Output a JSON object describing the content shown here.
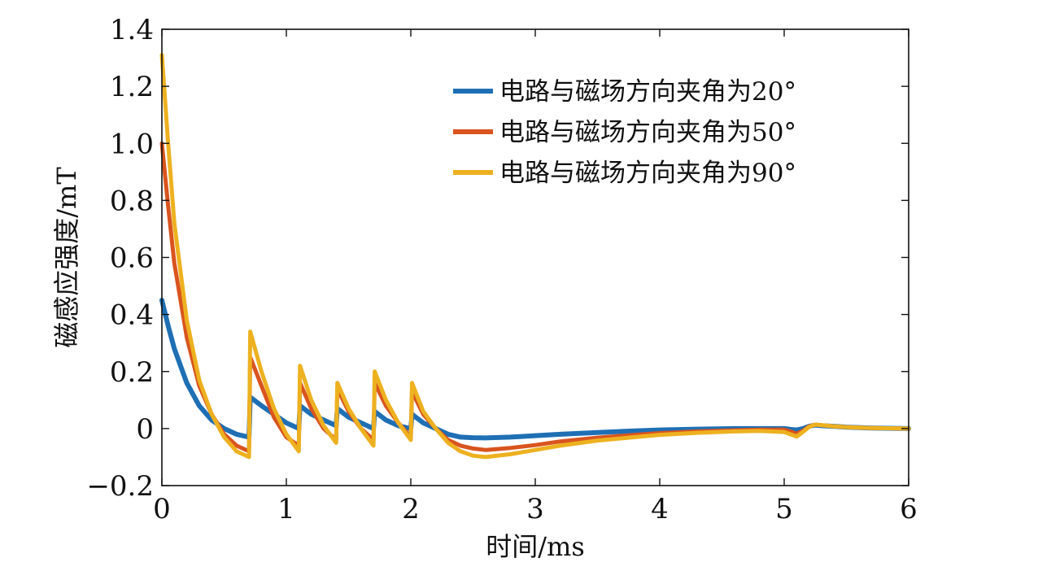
{
  "chart_data": {
    "type": "line",
    "title": "",
    "xlabel": "时间/ms",
    "ylabel": "磁感应强度/mT",
    "xlim": [
      0,
      6
    ],
    "ylim": [
      -0.2,
      1.4
    ],
    "xticks": [
      0,
      1,
      2,
      3,
      4,
      5,
      6
    ],
    "xtick_labels": [
      "0",
      "1",
      "2",
      "3",
      "4",
      "5",
      "6"
    ],
    "yticks": [
      -0.2,
      0,
      0.2,
      0.4,
      0.6,
      0.8,
      1.0,
      1.2,
      1.4
    ],
    "ytick_labels": [
      "−0.2",
      "0",
      "0.2",
      "0.4",
      "0.6",
      "0.8",
      "1.0",
      "1.2",
      "1.4"
    ],
    "grid": false,
    "legend_position": "top-right",
    "series": [
      {
        "name": "电路与磁场方向夹角为20°",
        "color": "#1f6fb4",
        "x": [
          0,
          0.05,
          0.1,
          0.2,
          0.3,
          0.4,
          0.5,
          0.6,
          0.7,
          0.71,
          0.8,
          0.9,
          1.0,
          1.1,
          1.11,
          1.2,
          1.3,
          1.4,
          1.41,
          1.5,
          1.6,
          1.7,
          1.71,
          1.8,
          1.9,
          2.0,
          2.01,
          2.1,
          2.2,
          2.3,
          2.4,
          2.5,
          2.6,
          2.8,
          3.0,
          3.2,
          3.5,
          3.8,
          4.0,
          4.3,
          4.6,
          4.8,
          5.0,
          5.05,
          5.1,
          5.15,
          5.2,
          5.25,
          5.3,
          5.4,
          5.5,
          5.7,
          6.0
        ],
        "y": [
          0.45,
          0.36,
          0.28,
          0.16,
          0.08,
          0.03,
          0.0,
          -0.02,
          -0.03,
          0.11,
          0.08,
          0.05,
          0.02,
          0.0,
          0.08,
          0.05,
          0.03,
          0.01,
          0.07,
          0.04,
          0.02,
          0.0,
          0.06,
          0.03,
          0.01,
          0.0,
          0.05,
          0.02,
          0.0,
          -0.02,
          -0.03,
          -0.032,
          -0.033,
          -0.03,
          -0.025,
          -0.02,
          -0.014,
          -0.008,
          -0.005,
          -0.002,
          0.0,
          0.0,
          0.0,
          -0.003,
          -0.005,
          0.0,
          0.008,
          0.012,
          0.01,
          0.008,
          0.005,
          0.002,
          0.0
        ]
      },
      {
        "name": "电路与磁场方向夹角为50°",
        "color": "#d9541e",
        "x": [
          0,
          0.05,
          0.1,
          0.2,
          0.3,
          0.4,
          0.5,
          0.6,
          0.7,
          0.71,
          0.8,
          0.9,
          1.0,
          1.1,
          1.11,
          1.2,
          1.3,
          1.4,
          1.41,
          1.5,
          1.6,
          1.7,
          1.71,
          1.8,
          1.9,
          2.0,
          2.01,
          2.1,
          2.2,
          2.3,
          2.4,
          2.5,
          2.6,
          2.8,
          3.0,
          3.2,
          3.5,
          3.8,
          4.0,
          4.3,
          4.6,
          4.8,
          5.0,
          5.05,
          5.1,
          5.15,
          5.2,
          5.25,
          5.3,
          5.4,
          5.5,
          5.7,
          6.0
        ],
        "y": [
          1.0,
          0.78,
          0.58,
          0.32,
          0.15,
          0.05,
          -0.02,
          -0.06,
          -0.08,
          0.25,
          0.15,
          0.04,
          -0.03,
          -0.06,
          0.16,
          0.07,
          0.0,
          -0.04,
          0.14,
          0.06,
          0.0,
          -0.04,
          0.16,
          0.08,
          0.02,
          -0.03,
          0.13,
          0.05,
          0.0,
          -0.04,
          -0.06,
          -0.07,
          -0.075,
          -0.068,
          -0.058,
          -0.045,
          -0.032,
          -0.022,
          -0.016,
          -0.01,
          -0.006,
          -0.004,
          -0.004,
          -0.01,
          -0.018,
          -0.008,
          0.008,
          0.014,
          0.012,
          0.008,
          0.005,
          0.002,
          0.0
        ]
      },
      {
        "name": "电路与磁场方向夹角为90°",
        "color": "#edb120",
        "x": [
          0,
          0.05,
          0.1,
          0.2,
          0.3,
          0.4,
          0.5,
          0.6,
          0.7,
          0.71,
          0.8,
          0.9,
          1.0,
          1.1,
          1.11,
          1.2,
          1.3,
          1.4,
          1.41,
          1.5,
          1.6,
          1.7,
          1.71,
          1.8,
          1.9,
          2.0,
          2.01,
          2.1,
          2.2,
          2.3,
          2.4,
          2.5,
          2.6,
          2.8,
          3.0,
          3.2,
          3.5,
          3.8,
          4.0,
          4.3,
          4.6,
          4.8,
          5.0,
          5.05,
          5.1,
          5.15,
          5.2,
          5.25,
          5.3,
          5.4,
          5.5,
          5.7,
          6.0
        ],
        "y": [
          1.31,
          1.0,
          0.72,
          0.38,
          0.17,
          0.05,
          -0.03,
          -0.08,
          -0.1,
          0.34,
          0.2,
          0.07,
          -0.02,
          -0.08,
          0.22,
          0.1,
          0.01,
          -0.05,
          0.16,
          0.07,
          0.0,
          -0.06,
          0.2,
          0.1,
          0.02,
          -0.04,
          0.16,
          0.06,
          0.0,
          -0.05,
          -0.08,
          -0.095,
          -0.1,
          -0.09,
          -0.075,
          -0.06,
          -0.042,
          -0.03,
          -0.022,
          -0.015,
          -0.01,
          -0.008,
          -0.012,
          -0.02,
          -0.028,
          -0.012,
          0.006,
          0.014,
          0.012,
          0.008,
          0.005,
          0.002,
          0.0
        ]
      }
    ]
  }
}
